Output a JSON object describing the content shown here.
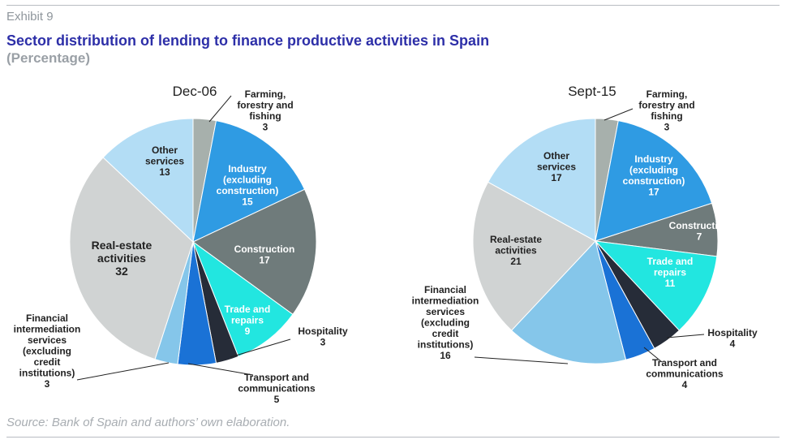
{
  "header": {
    "exhibit": "Exhibit 9",
    "title": "Sector distribution of lending to finance productive activities in Spain",
    "subtitle": "(Percentage)"
  },
  "footer": {
    "source": "Source: Bank of Spain and authors’ own elaboration."
  },
  "chart_data": [
    {
      "type": "pie",
      "title": "Dec-06",
      "slices": [
        {
          "label": [
            "Farming,",
            "forestry and",
            "fishing"
          ],
          "value": 3,
          "color": "#a7b0ac"
        },
        {
          "label": [
            "Industry",
            "(excluding",
            "construction)"
          ],
          "value": 15,
          "color": "#2f9be3"
        },
        {
          "label": [
            "Construction"
          ],
          "value": 17,
          "color": "#6f7b7b"
        },
        {
          "label": [
            "Trade and",
            "repairs"
          ],
          "value": 9,
          "color": "#22e6e0"
        },
        {
          "label": [
            "Hospitality"
          ],
          "value": 3,
          "color": "#262c38"
        },
        {
          "label": [
            "Transport and",
            "communications"
          ],
          "value": 5,
          "color": "#1a72d6"
        },
        {
          "label": [
            "Financial",
            "intermediation",
            "services",
            "(excluding",
            "credit",
            "institutions)"
          ],
          "value": 3,
          "color": "#85c6ea"
        },
        {
          "label": [
            "Real-estate",
            "activities"
          ],
          "value": 32,
          "color": "#d0d3d3"
        },
        {
          "label": [
            "Other",
            "services"
          ],
          "value": 13,
          "color": "#b3ddf5"
        }
      ]
    },
    {
      "type": "pie",
      "title": "Sept-15",
      "slices": [
        {
          "label": [
            "Farming,",
            "forestry and",
            "fishing"
          ],
          "value": 3,
          "color": "#a7b0ac"
        },
        {
          "label": [
            "Industry",
            "(excluding",
            "construction)"
          ],
          "value": 17,
          "color": "#2f9be3"
        },
        {
          "label": [
            "Construction"
          ],
          "value": 7,
          "color": "#6f7b7b"
        },
        {
          "label": [
            "Trade and",
            "repairs"
          ],
          "value": 11,
          "color": "#22e6e0"
        },
        {
          "label": [
            "Hospitality"
          ],
          "value": 4,
          "color": "#262c38"
        },
        {
          "label": [
            "Transport and",
            "communications"
          ],
          "value": 4,
          "color": "#1a72d6"
        },
        {
          "label": [
            "Financial",
            "intermediation",
            "services",
            "(excluding",
            "credit",
            "institutions)"
          ],
          "value": 16,
          "color": "#85c6ea"
        },
        {
          "label": [
            "Real-estate",
            "activities"
          ],
          "value": 21,
          "color": "#d0d3d3"
        },
        {
          "label": [
            "Other",
            "services"
          ],
          "value": 17,
          "color": "#b3ddf5"
        }
      ]
    }
  ]
}
